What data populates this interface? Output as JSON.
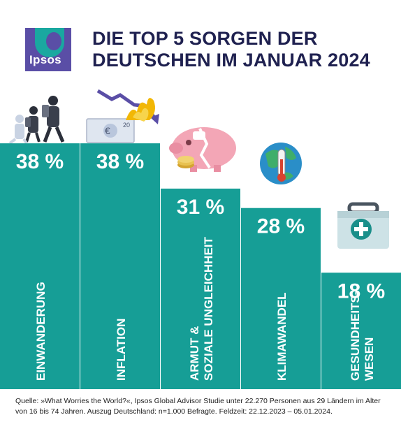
{
  "logo": {
    "text": "Ipsos",
    "bg_color": "#5a4ea6",
    "accent_color": "#1aa8a0"
  },
  "title": {
    "line1": "DIE TOP 5 SORGEN DER",
    "line2": "DEUTSCHEN IM JANUAR 2024"
  },
  "chart_data": {
    "type": "bar",
    "unit": "%",
    "bar_color": "#169e96",
    "categories": [
      [
        "EINWANDERUNG"
      ],
      [
        "INFLATION"
      ],
      [
        "ARMUT &",
        "SOZIALE UNGLEICHHEIT"
      ],
      [
        "KLIMAWANDEL"
      ],
      [
        "GESUNDHEITS-",
        "WESEN"
      ]
    ],
    "values": [
      38,
      38,
      31,
      28,
      18
    ],
    "value_labels": [
      "38 %",
      "38 %",
      "31 %",
      "28 %",
      "18 %"
    ],
    "icons": [
      "migration-icon",
      "inflation-icon",
      "broken-piggy-bank-icon",
      "globe-thermometer-icon",
      "first-aid-kit-icon"
    ]
  },
  "source": {
    "line1": "Quelle: »What Worries the World?«, Ipsos Global Advisor Studie unter 22.270 Personen aus 29 Ländern im Alter",
    "line2": "von 16 bis 74 Jahren. Auszug Deutschland: n=1.000 Befragte. Feldzeit: 22.12.2023 – 05.01.2024."
  }
}
